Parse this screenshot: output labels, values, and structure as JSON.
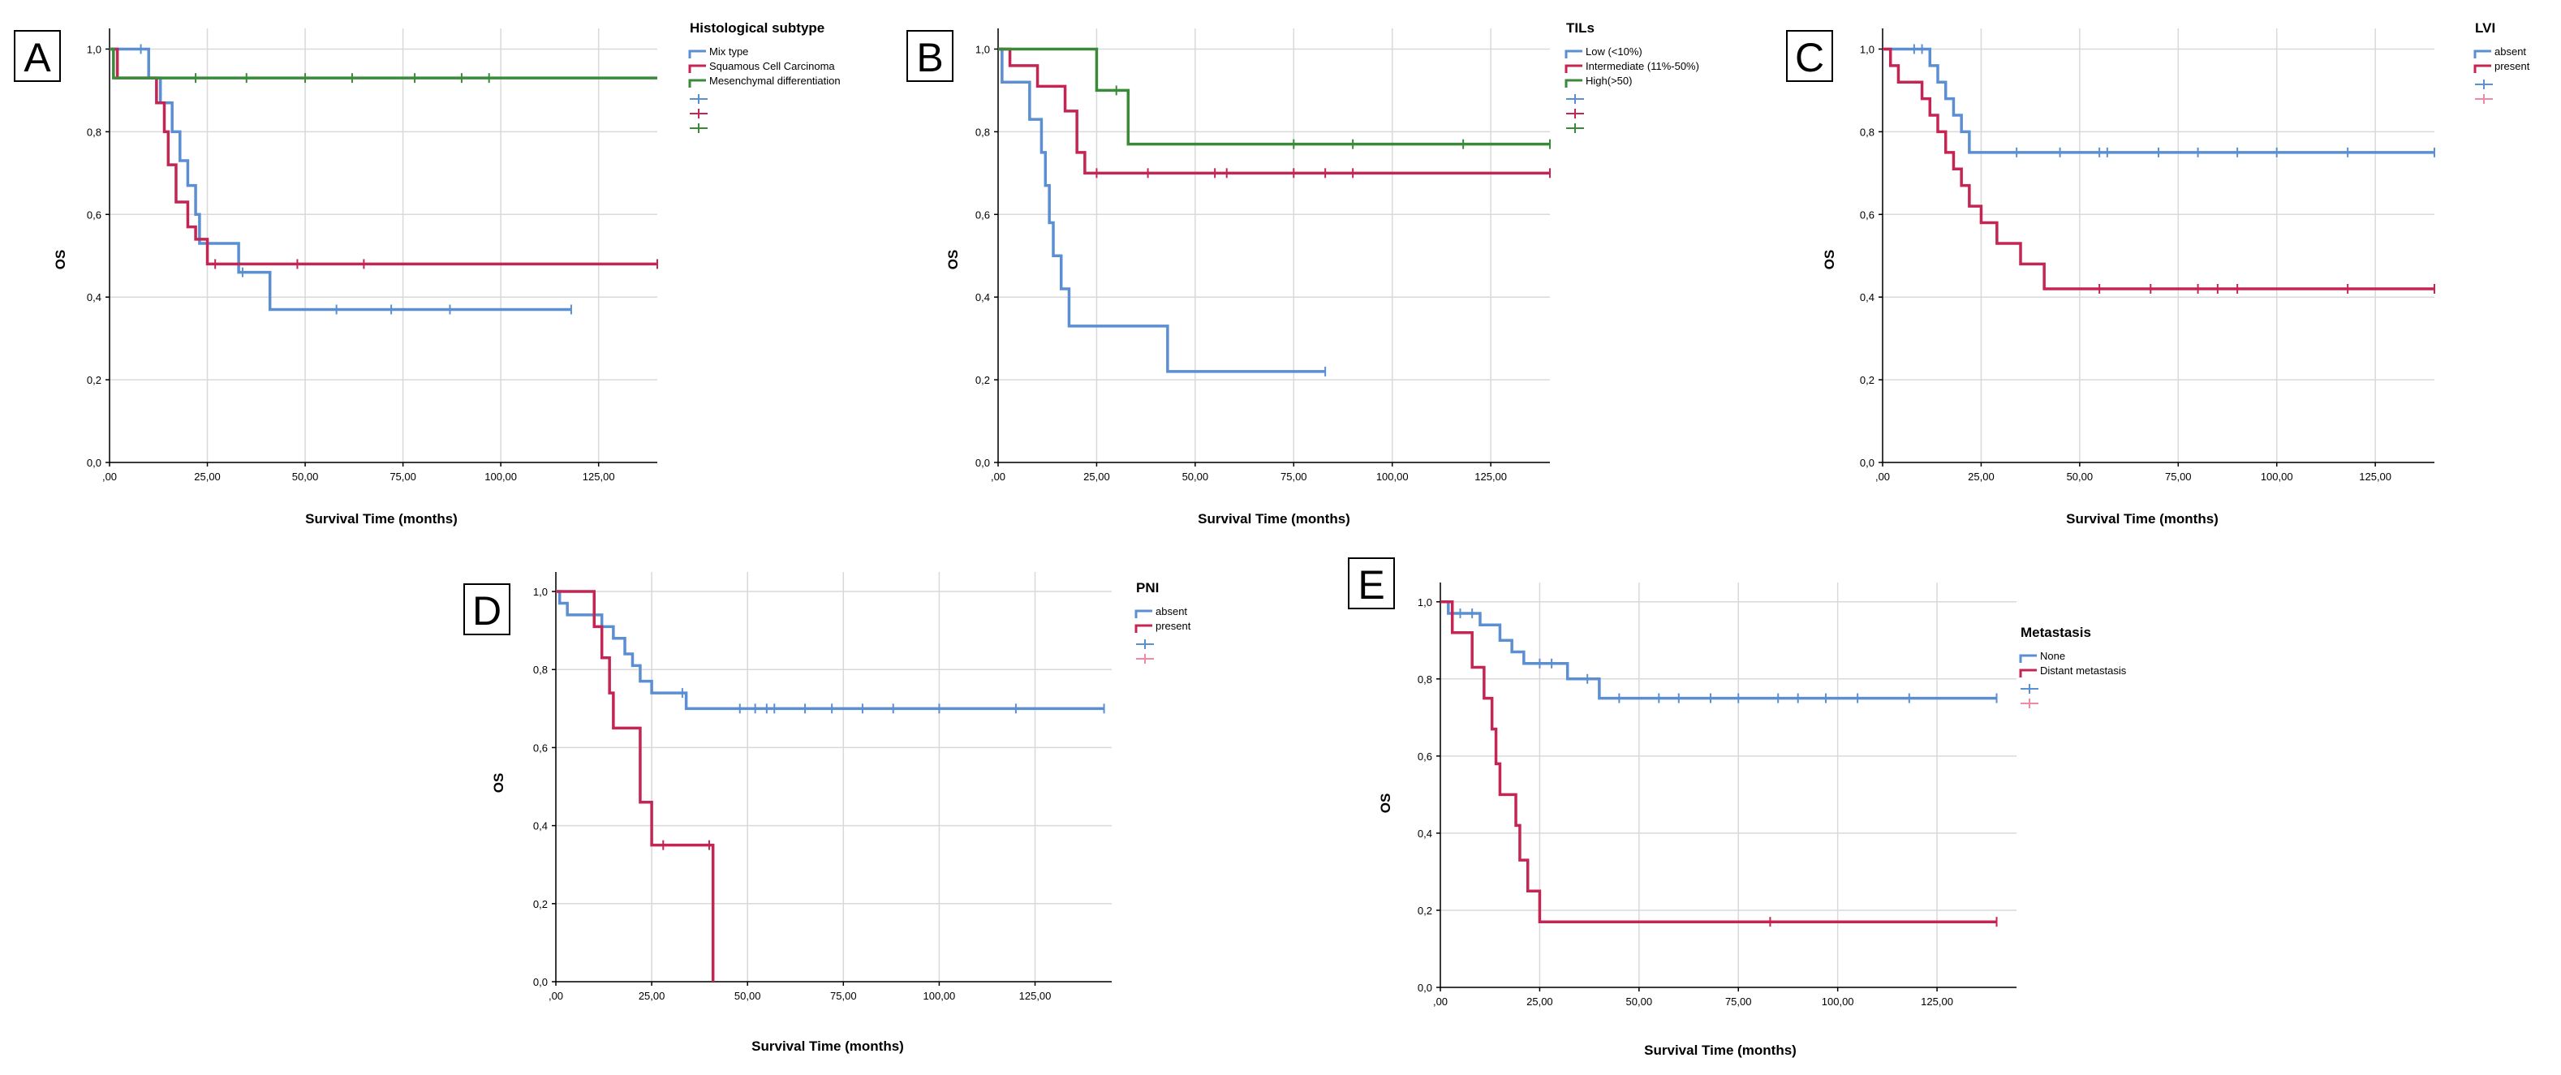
{
  "colors": {
    "blue": "#5b8fd2",
    "red": "#c42553",
    "green": "#3a8a3a",
    "pink": "#f08aa4"
  },
  "chart_data": [
    {
      "type": "line",
      "panel_label": "A",
      "xlabel": "Survival Time (months)",
      "ylabel": "OS",
      "xlim": [
        0,
        140
      ],
      "ylim": [
        0,
        1.05
      ],
      "x_ticks": [
        0,
        25,
        50,
        75,
        100,
        125
      ],
      "x_tick_labels": [
        ",00",
        "25,00",
        "50,00",
        "75,00",
        "100,00",
        "125,00"
      ],
      "y_ticks": [
        0,
        0.2,
        0.4,
        0.6,
        0.8,
        1.0
      ],
      "y_tick_labels": [
        "0,0",
        "0,2",
        "0,4",
        "0,6",
        "0,8",
        "1,0"
      ],
      "legend_title": "Histological subtype",
      "legend_entries": [
        "Mix type",
        "Squamous Cell Carcinoma",
        "Mesenchymal differentiation",
        "",
        "",
        ""
      ],
      "series": [
        {
          "name": "Mix type",
          "color": "blue",
          "steps": [
            [
              0,
              1.0
            ],
            [
              10,
              0.93
            ],
            [
              13,
              0.87
            ],
            [
              16,
              0.8
            ],
            [
              18,
              0.73
            ],
            [
              20,
              0.67
            ],
            [
              22,
              0.6
            ],
            [
              23,
              0.53
            ],
            [
              33,
              0.46
            ],
            [
              41,
              0.37
            ],
            [
              118,
              0.37
            ]
          ],
          "censor": [
            [
              8,
              1.0
            ],
            [
              34,
              0.46
            ],
            [
              58,
              0.37
            ],
            [
              72,
              0.37
            ],
            [
              87,
              0.37
            ],
            [
              118,
              0.37
            ]
          ]
        },
        {
          "name": "Squamous Cell Carcinoma",
          "color": "red",
          "steps": [
            [
              0,
              1.0
            ],
            [
              2,
              0.93
            ],
            [
              12,
              0.87
            ],
            [
              14,
              0.8
            ],
            [
              15,
              0.72
            ],
            [
              17,
              0.63
            ],
            [
              20,
              0.57
            ],
            [
              22,
              0.54
            ],
            [
              25,
              0.48
            ],
            [
              140,
              0.48
            ]
          ],
          "censor": [
            [
              27,
              0.48
            ],
            [
              48,
              0.48
            ],
            [
              65,
              0.48
            ],
            [
              140,
              0.48
            ]
          ]
        },
        {
          "name": "Mesenchymal differentiation",
          "color": "green",
          "steps": [
            [
              0,
              1.0
            ],
            [
              1,
              0.93
            ],
            [
              140,
              0.93
            ]
          ],
          "censor": [
            [
              22,
              0.93
            ],
            [
              35,
              0.93
            ],
            [
              50,
              0.93
            ],
            [
              62,
              0.93
            ],
            [
              78,
              0.93
            ],
            [
              90,
              0.93
            ],
            [
              97,
              0.93
            ]
          ]
        }
      ]
    },
    {
      "type": "line",
      "panel_label": "B",
      "xlabel": "Survival Time (months)",
      "ylabel": "OS",
      "xlim": [
        0,
        140
      ],
      "ylim": [
        0,
        1.05
      ],
      "x_ticks": [
        0,
        25,
        50,
        75,
        100,
        125
      ],
      "x_tick_labels": [
        ",00",
        "25,00",
        "50,00",
        "75,00",
        "100,00",
        "125,00"
      ],
      "y_ticks": [
        0,
        0.2,
        0.4,
        0.6,
        0.8,
        1.0
      ],
      "y_tick_labels": [
        "0,0",
        "0,2",
        "0,4",
        "0,6",
        "0,8",
        "1,0"
      ],
      "legend_title": "TILs",
      "legend_entries": [
        "Low (<10%)",
        "Intermediate (11%-50%)",
        "High(>50)",
        "",
        "",
        ""
      ],
      "series": [
        {
          "name": "Low (<10%)",
          "color": "blue",
          "steps": [
            [
              0,
              1.0
            ],
            [
              1,
              0.92
            ],
            [
              8,
              0.83
            ],
            [
              11,
              0.75
            ],
            [
              12,
              0.67
            ],
            [
              13,
              0.58
            ],
            [
              14,
              0.5
            ],
            [
              16,
              0.42
            ],
            [
              18,
              0.33
            ],
            [
              43,
              0.22
            ],
            [
              83,
              0.22
            ]
          ],
          "censor": [
            [
              83,
              0.22
            ]
          ]
        },
        {
          "name": "Intermediate (11%-50%)",
          "color": "red",
          "steps": [
            [
              0,
              1.0
            ],
            [
              3,
              0.96
            ],
            [
              10,
              0.91
            ],
            [
              17,
              0.85
            ],
            [
              20,
              0.75
            ],
            [
              22,
              0.7
            ],
            [
              140,
              0.7
            ]
          ],
          "censor": [
            [
              25,
              0.7
            ],
            [
              38,
              0.7
            ],
            [
              55,
              0.7
            ],
            [
              58,
              0.7
            ],
            [
              75,
              0.7
            ],
            [
              83,
              0.7
            ],
            [
              90,
              0.7
            ],
            [
              140,
              0.7
            ]
          ]
        },
        {
          "name": "High(>50)",
          "color": "green",
          "steps": [
            [
              0,
              1.0
            ],
            [
              25,
              0.9
            ],
            [
              33,
              0.77
            ],
            [
              140,
              0.77
            ]
          ],
          "censor": [
            [
              30,
              0.9
            ],
            [
              75,
              0.77
            ],
            [
              90,
              0.77
            ],
            [
              118,
              0.77
            ],
            [
              140,
              0.77
            ]
          ]
        }
      ]
    },
    {
      "type": "line",
      "panel_label": "C",
      "xlabel": "Survival Time (months)",
      "ylabel": "OS",
      "xlim": [
        0,
        140
      ],
      "ylim": [
        0,
        1.05
      ],
      "x_ticks": [
        0,
        25,
        50,
        75,
        100,
        125
      ],
      "x_tick_labels": [
        ",00",
        "25,00",
        "50,00",
        "75,00",
        "100,00",
        "125,00"
      ],
      "y_ticks": [
        0,
        0.2,
        0.4,
        0.6,
        0.8,
        1.0
      ],
      "y_tick_labels": [
        "0,0",
        "0,2",
        "0,4",
        "0,6",
        "0,8",
        "1,0"
      ],
      "legend_title": "LVI",
      "legend_entries": [
        "absent",
        "present",
        "",
        ""
      ],
      "series": [
        {
          "name": "absent",
          "color": "blue",
          "steps": [
            [
              0,
              1.0
            ],
            [
              12,
              0.96
            ],
            [
              14,
              0.92
            ],
            [
              16,
              0.88
            ],
            [
              18,
              0.84
            ],
            [
              20,
              0.8
            ],
            [
              22,
              0.75
            ],
            [
              140,
              0.75
            ]
          ],
          "censor": [
            [
              8,
              1.0
            ],
            [
              10,
              1.0
            ],
            [
              34,
              0.75
            ],
            [
              45,
              0.75
            ],
            [
              55,
              0.75
            ],
            [
              57,
              0.75
            ],
            [
              70,
              0.75
            ],
            [
              80,
              0.75
            ],
            [
              90,
              0.75
            ],
            [
              100,
              0.75
            ],
            [
              118,
              0.75
            ],
            [
              140,
              0.75
            ]
          ]
        },
        {
          "name": "present",
          "color": "red",
          "steps": [
            [
              0,
              1.0
            ],
            [
              2,
              0.96
            ],
            [
              4,
              0.92
            ],
            [
              10,
              0.88
            ],
            [
              12,
              0.84
            ],
            [
              14,
              0.8
            ],
            [
              16,
              0.75
            ],
            [
              18,
              0.71
            ],
            [
              20,
              0.67
            ],
            [
              22,
              0.62
            ],
            [
              25,
              0.58
            ],
            [
              29,
              0.53
            ],
            [
              35,
              0.48
            ],
            [
              41,
              0.42
            ],
            [
              140,
              0.42
            ]
          ],
          "censor": [
            [
              55,
              0.42
            ],
            [
              68,
              0.42
            ],
            [
              80,
              0.42
            ],
            [
              85,
              0.42
            ],
            [
              90,
              0.42
            ],
            [
              118,
              0.42
            ],
            [
              140,
              0.42
            ]
          ]
        }
      ]
    },
    {
      "type": "line",
      "panel_label": "D",
      "xlabel": "Survival Time (months)",
      "ylabel": "OS",
      "xlim": [
        0,
        145
      ],
      "ylim": [
        0,
        1.05
      ],
      "x_ticks": [
        0,
        25,
        50,
        75,
        100,
        125
      ],
      "x_tick_labels": [
        ",00",
        "25,00",
        "50,00",
        "75,00",
        "100,00",
        "125,00"
      ],
      "y_ticks": [
        0,
        0.2,
        0.4,
        0.6,
        0.8,
        1.0
      ],
      "y_tick_labels": [
        "0,0",
        "0,2",
        "0,4",
        "0,6",
        "0,8",
        "1,0"
      ],
      "legend_title": "PNI",
      "legend_entries": [
        "absent",
        "present",
        "",
        ""
      ],
      "series": [
        {
          "name": "absent",
          "color": "blue",
          "steps": [
            [
              0,
              1.0
            ],
            [
              1,
              0.97
            ],
            [
              3,
              0.94
            ],
            [
              12,
              0.91
            ],
            [
              15,
              0.88
            ],
            [
              18,
              0.84
            ],
            [
              20,
              0.81
            ],
            [
              22,
              0.77
            ],
            [
              25,
              0.74
            ],
            [
              34,
              0.7
            ],
            [
              143,
              0.7
            ]
          ],
          "censor": [
            [
              33,
              0.74
            ],
            [
              48,
              0.7
            ],
            [
              52,
              0.7
            ],
            [
              55,
              0.7
            ],
            [
              57,
              0.7
            ],
            [
              65,
              0.7
            ],
            [
              72,
              0.7
            ],
            [
              80,
              0.7
            ],
            [
              88,
              0.7
            ],
            [
              100,
              0.7
            ],
            [
              120,
              0.7
            ],
            [
              143,
              0.7
            ]
          ]
        },
        {
          "name": "present",
          "color": "red",
          "steps": [
            [
              0,
              1.0
            ],
            [
              10,
              0.91
            ],
            [
              12,
              0.83
            ],
            [
              14,
              0.74
            ],
            [
              15,
              0.65
            ],
            [
              22,
              0.46
            ],
            [
              25,
              0.35
            ],
            [
              41,
              0.0
            ]
          ],
          "censor": [
            [
              28,
              0.35
            ],
            [
              40,
              0.35
            ]
          ]
        }
      ]
    },
    {
      "type": "line",
      "panel_label": "E",
      "xlabel": "Survival Time (months)",
      "ylabel": "OS",
      "xlim": [
        0,
        145
      ],
      "ylim": [
        0,
        1.05
      ],
      "x_ticks": [
        0,
        25,
        50,
        75,
        100,
        125
      ],
      "x_tick_labels": [
        ",00",
        "25,00",
        "50,00",
        "75,00",
        "100,00",
        "125,00"
      ],
      "y_ticks": [
        0,
        0.2,
        0.4,
        0.6,
        0.8,
        1.0
      ],
      "y_tick_labels": [
        "0,0",
        "0,2",
        "0,4",
        "0,6",
        "0,8",
        "1,0"
      ],
      "legend_title": "Metastasis",
      "legend_entries": [
        "None",
        "Distant metastasis",
        "",
        ""
      ],
      "series": [
        {
          "name": "None",
          "color": "blue",
          "steps": [
            [
              0,
              1.0
            ],
            [
              2,
              0.97
            ],
            [
              10,
              0.94
            ],
            [
              15,
              0.9
            ],
            [
              18,
              0.87
            ],
            [
              21,
              0.84
            ],
            [
              32,
              0.8
            ],
            [
              40,
              0.75
            ],
            [
              140,
              0.75
            ]
          ],
          "censor": [
            [
              5,
              0.97
            ],
            [
              8,
              0.97
            ],
            [
              25,
              0.84
            ],
            [
              28,
              0.84
            ],
            [
              37,
              0.8
            ],
            [
              45,
              0.75
            ],
            [
              55,
              0.75
            ],
            [
              60,
              0.75
            ],
            [
              68,
              0.75
            ],
            [
              75,
              0.75
            ],
            [
              85,
              0.75
            ],
            [
              90,
              0.75
            ],
            [
              97,
              0.75
            ],
            [
              105,
              0.75
            ],
            [
              118,
              0.75
            ],
            [
              140,
              0.75
            ]
          ]
        },
        {
          "name": "Distant metastasis",
          "color": "red",
          "steps": [
            [
              0,
              1.0
            ],
            [
              3,
              0.92
            ],
            [
              8,
              0.83
            ],
            [
              11,
              0.75
            ],
            [
              13,
              0.67
            ],
            [
              14,
              0.58
            ],
            [
              15,
              0.5
            ],
            [
              19,
              0.42
            ],
            [
              20,
              0.33
            ],
            [
              22,
              0.25
            ],
            [
              25,
              0.17
            ],
            [
              140,
              0.17
            ]
          ],
          "censor": [
            [
              83,
              0.17
            ],
            [
              140,
              0.17
            ]
          ]
        }
      ]
    }
  ]
}
